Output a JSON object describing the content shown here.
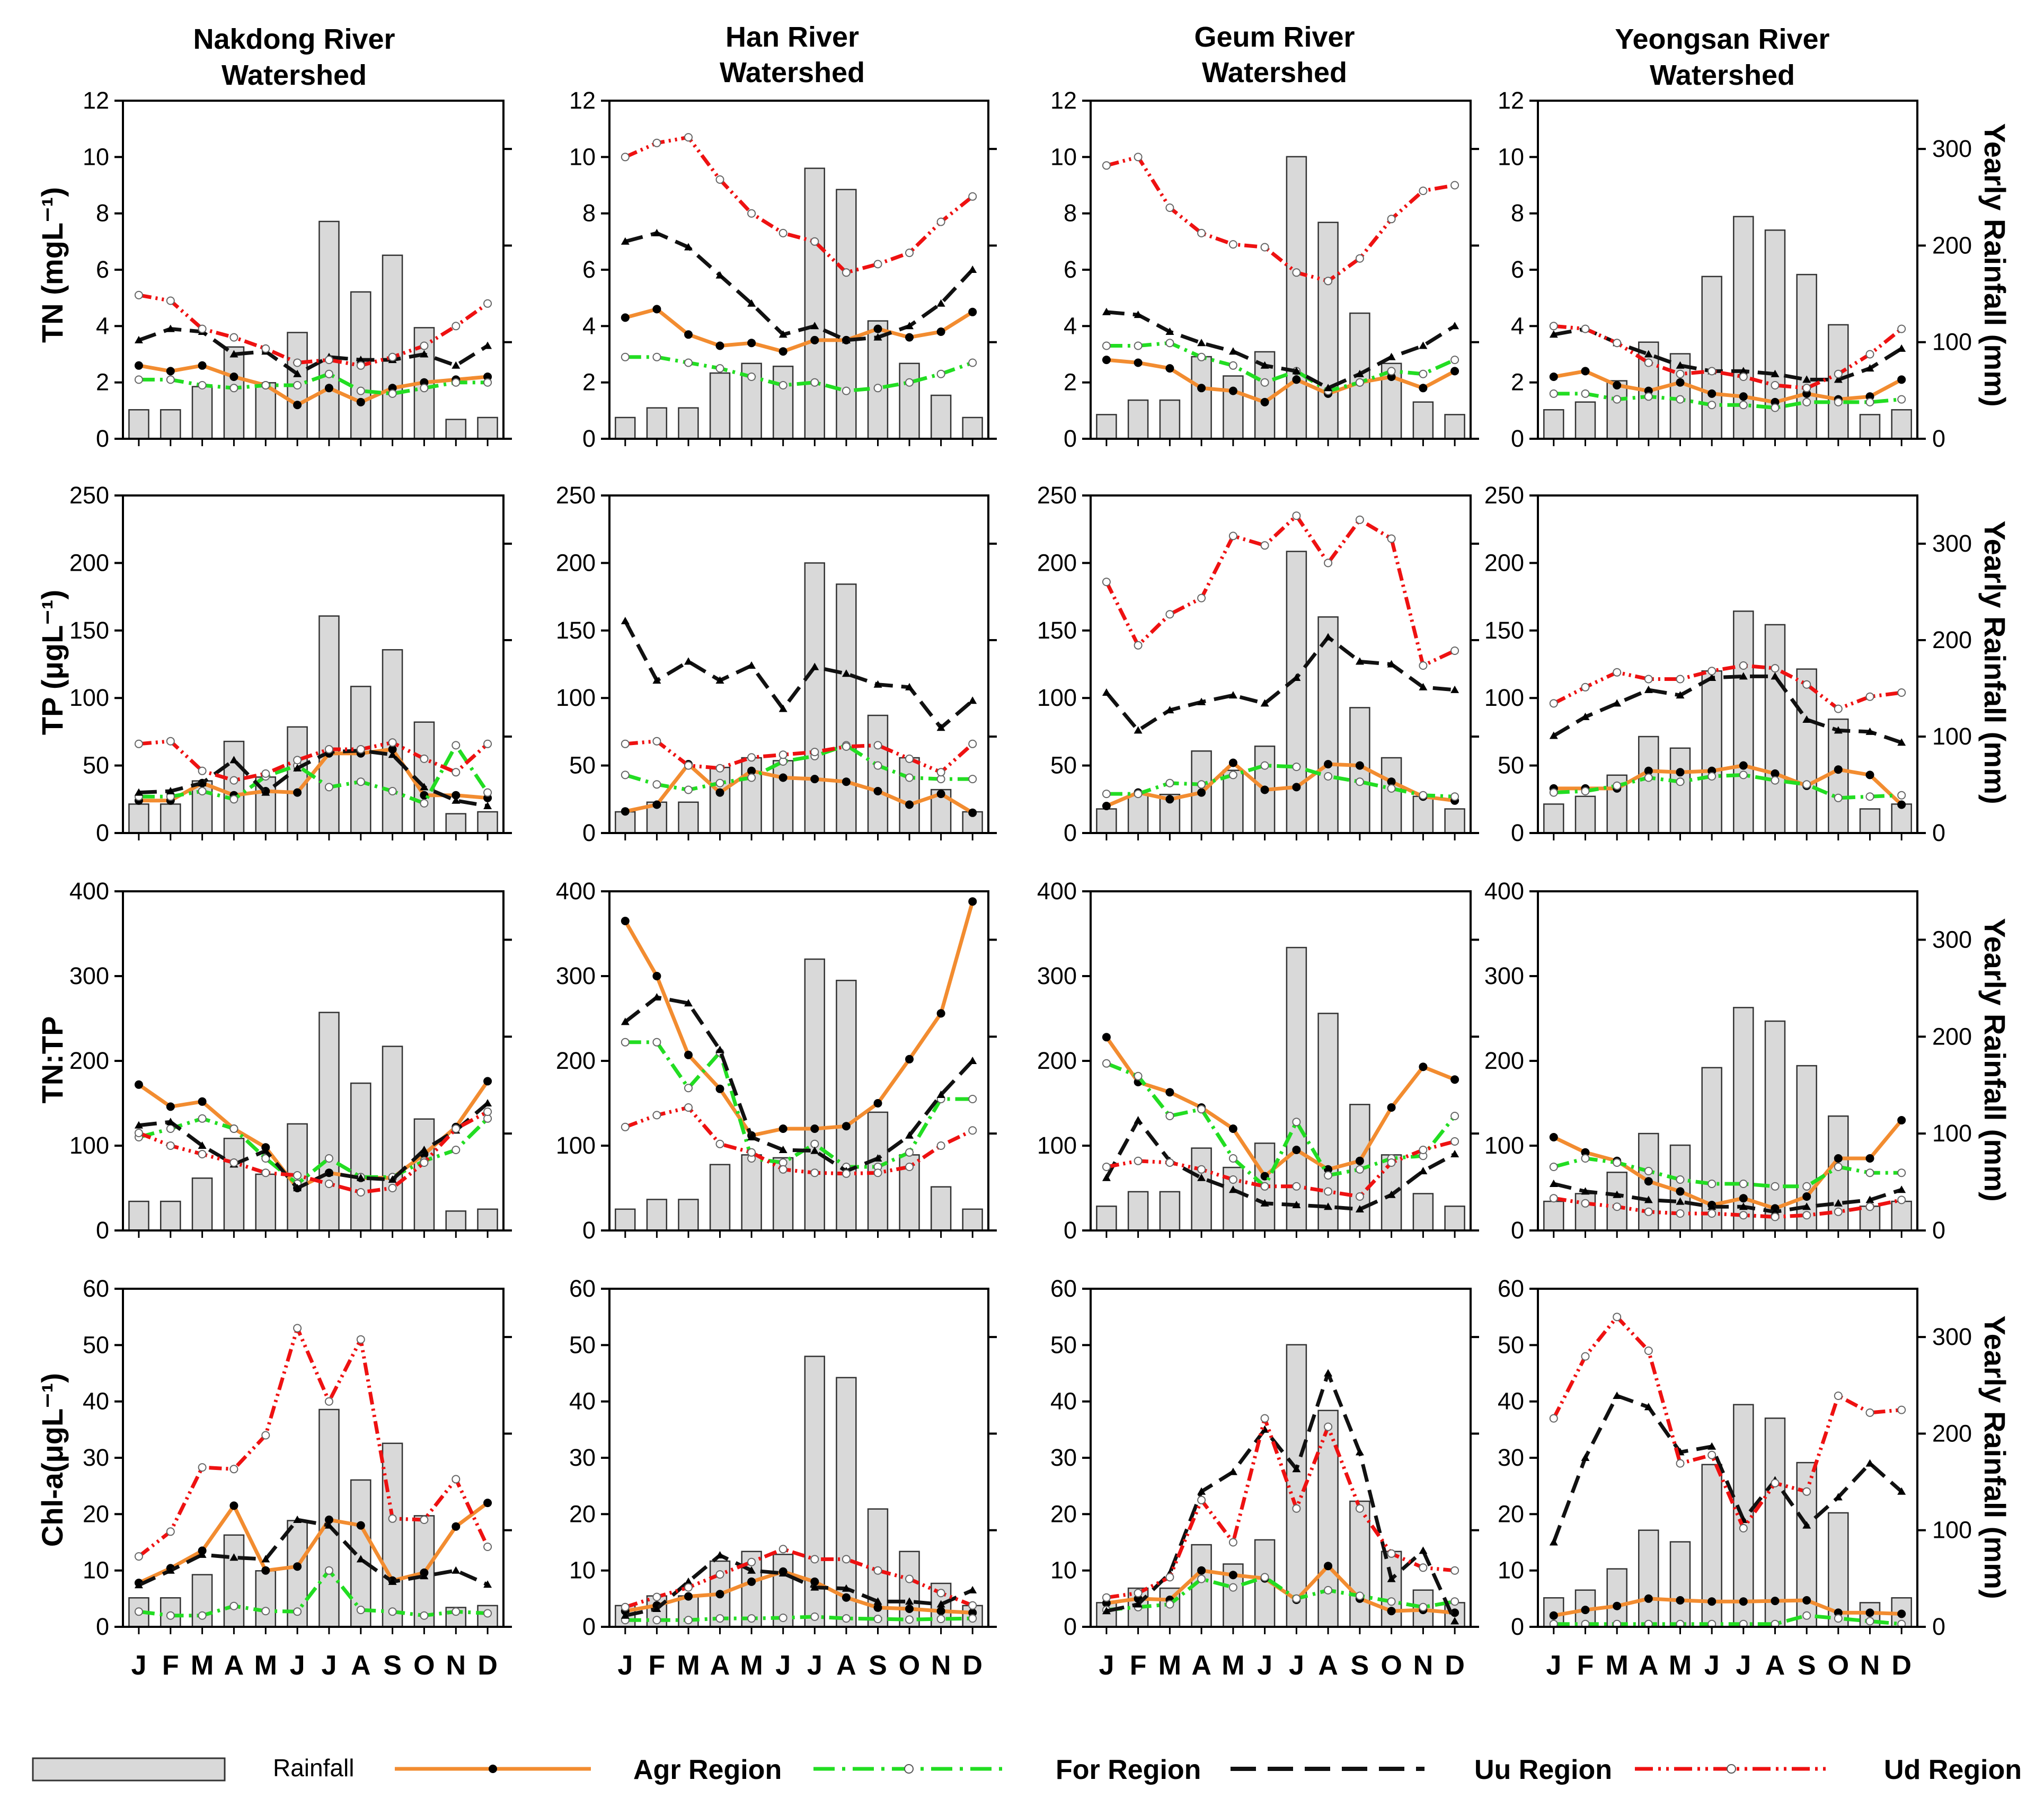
{
  "legend": {
    "rainfall": "Rainfall",
    "agr": "Agr Region",
    "for": "For Region",
    "uu": "Uu Region",
    "ud": "Ud Region"
  },
  "months": [
    "J",
    "F",
    "M",
    "A",
    "M",
    "J",
    "J",
    "A",
    "S",
    "O",
    "N",
    "D"
  ],
  "right_axis": {
    "label": "Yearly Rainfall (mm)",
    "ylim": [
      0,
      350
    ],
    "ticks": [
      0,
      100,
      200,
      300
    ]
  },
  "colors": {
    "agr": "#f28c30",
    "for": "#22dd22",
    "uu": "#111111",
    "ud": "#ee1111",
    "bar_fill": "#d9d9d9",
    "bar_stroke": "#333333"
  },
  "chart_data": {
    "type": "bar+line",
    "columns": [
      "Nakdong River Watershed",
      "Han River Watershed",
      "Geum River Watershed",
      "Yeongsan River Watershed"
    ],
    "column_titles": [
      [
        "Nakdong River",
        "Watershed"
      ],
      [
        "Han River",
        "Watershed"
      ],
      [
        "Geum River",
        "Watershed"
      ],
      [
        "Yeongsan River",
        "Watershed"
      ]
    ],
    "rows": [
      {
        "key": "TN",
        "ylabel": "TN (mgL⁻¹)",
        "ylim": [
          0,
          12
        ],
        "ticks": [
          0,
          2,
          4,
          6,
          8,
          10,
          12
        ]
      },
      {
        "key": "TP",
        "ylabel": "TP (μgL⁻¹)",
        "ylim": [
          0,
          250
        ],
        "ticks": [
          0,
          50,
          100,
          150,
          200,
          250
        ]
      },
      {
        "key": "TNTP",
        "ylabel": "TN:TP",
        "ylim": [
          0,
          400
        ],
        "ticks": [
          0,
          100,
          200,
          300,
          400
        ]
      },
      {
        "key": "CHLA",
        "ylabel": "Chl-a(μgL⁻¹)",
        "ylim": [
          0,
          60
        ],
        "ticks": [
          0,
          10,
          20,
          30,
          40,
          50,
          60
        ]
      }
    ],
    "rainfall": [
      [
        30,
        30,
        54,
        95,
        58,
        110,
        225,
        152,
        190,
        115,
        20,
        22
      ],
      [
        22,
        32,
        32,
        68,
        78,
        75,
        280,
        258,
        122,
        78,
        45,
        22
      ],
      [
        25,
        40,
        40,
        85,
        65,
        90,
        292,
        224,
        130,
        78,
        38,
        25
      ],
      [
        30,
        38,
        60,
        100,
        88,
        168,
        230,
        216,
        170,
        118,
        25,
        30
      ]
    ],
    "series": {
      "TN": [
        {
          "agr": [
            2.6,
            2.4,
            2.6,
            2.2,
            1.9,
            1.2,
            1.8,
            1.3,
            1.8,
            2.0,
            2.1,
            2.2
          ],
          "for": [
            2.1,
            2.1,
            1.9,
            1.8,
            1.9,
            1.9,
            2.3,
            1.7,
            1.6,
            1.8,
            2.0,
            2.0
          ],
          "uu": [
            3.5,
            3.9,
            3.8,
            3.0,
            3.1,
            2.3,
            2.9,
            2.8,
            2.8,
            3.0,
            2.6,
            3.3
          ],
          "ud": [
            5.1,
            4.9,
            3.9,
            3.6,
            3.2,
            2.7,
            2.8,
            2.6,
            2.9,
            3.3,
            4.0,
            4.8
          ]
        },
        {
          "agr": [
            4.3,
            4.6,
            3.7,
            3.3,
            3.4,
            3.1,
            3.5,
            3.5,
            3.9,
            3.6,
            3.8,
            4.5
          ],
          "for": [
            2.9,
            2.9,
            2.7,
            2.5,
            2.2,
            1.9,
            2.0,
            1.7,
            1.8,
            2.0,
            2.3,
            2.7
          ],
          "uu": [
            7.0,
            7.3,
            6.8,
            5.8,
            4.8,
            3.7,
            4.0,
            3.5,
            3.6,
            4.0,
            4.8,
            6.0
          ],
          "ud": [
            10.0,
            10.5,
            10.7,
            9.2,
            8.0,
            7.3,
            7.0,
            5.9,
            6.2,
            6.6,
            7.7,
            8.6
          ]
        },
        {
          "agr": [
            2.8,
            2.7,
            2.5,
            1.8,
            1.7,
            1.3,
            2.1,
            1.6,
            2.0,
            2.2,
            1.8,
            2.4
          ],
          "for": [
            3.3,
            3.3,
            3.4,
            2.9,
            2.6,
            2.0,
            2.4,
            1.7,
            2.0,
            2.4,
            2.3,
            2.8
          ],
          "uu": [
            4.5,
            4.4,
            3.8,
            3.4,
            3.1,
            2.6,
            2.4,
            1.8,
            2.3,
            2.9,
            3.3,
            4.0
          ],
          "ud": [
            9.7,
            10.0,
            8.2,
            7.3,
            6.9,
            6.8,
            5.9,
            5.6,
            6.4,
            7.8,
            8.8,
            9.0
          ]
        },
        {
          "agr": [
            2.2,
            2.4,
            1.9,
            1.7,
            2.0,
            1.6,
            1.5,
            1.3,
            1.6,
            1.4,
            1.5,
            2.1
          ],
          "for": [
            1.6,
            1.6,
            1.4,
            1.5,
            1.4,
            1.2,
            1.2,
            1.1,
            1.3,
            1.3,
            1.3,
            1.4
          ],
          "uu": [
            3.7,
            3.9,
            3.4,
            3.0,
            2.6,
            2.4,
            2.4,
            2.3,
            2.1,
            2.1,
            2.5,
            3.2
          ],
          "ud": [
            4.0,
            3.9,
            3.4,
            2.7,
            2.3,
            2.4,
            2.2,
            1.9,
            1.8,
            2.3,
            3.0,
            3.9
          ]
        }
      ],
      "TP": [
        {
          "agr": [
            24,
            24,
            37,
            28,
            31,
            30,
            59,
            59,
            62,
            28,
            28,
            26
          ],
          "for": [
            27,
            27,
            31,
            25,
            42,
            50,
            34,
            38,
            31,
            22,
            65,
            30
          ],
          "uu": [
            30,
            31,
            37,
            54,
            30,
            48,
            60,
            61,
            58,
            34,
            24,
            20
          ],
          "ud": [
            66,
            68,
            46,
            39,
            44,
            54,
            62,
            62,
            67,
            55,
            45,
            66
          ]
        },
        {
          "agr": [
            16,
            21,
            51,
            30,
            46,
            41,
            40,
            38,
            31,
            21,
            29,
            15
          ],
          "for": [
            43,
            36,
            32,
            37,
            41,
            53,
            57,
            65,
            50,
            41,
            40,
            40
          ],
          "uu": [
            157,
            113,
            127,
            113,
            124,
            92,
            123,
            118,
            110,
            108,
            78,
            98
          ],
          "ud": [
            66,
            68,
            50,
            48,
            56,
            58,
            60,
            64,
            65,
            55,
            45,
            66
          ]
        },
        {
          "agr": [
            20,
            30,
            25,
            30,
            52,
            32,
            34,
            51,
            50,
            38,
            27,
            24
          ],
          "for": [
            29,
            29,
            37,
            36,
            43,
            50,
            49,
            42,
            38,
            33,
            28,
            27
          ],
          "uu": [
            104,
            76,
            91,
            97,
            102,
            96,
            115,
            145,
            127,
            125,
            108,
            106
          ],
          "ud": [
            186,
            139,
            162,
            174,
            220,
            213,
            235,
            200,
            232,
            218,
            124,
            135
          ]
        },
        {
          "agr": [
            33,
            33,
            33,
            46,
            45,
            46,
            50,
            44,
            35,
            47,
            43,
            21
          ],
          "for": [
            30,
            31,
            35,
            41,
            38,
            42,
            43,
            39,
            36,
            26,
            27,
            28
          ],
          "uu": [
            72,
            86,
            96,
            106,
            102,
            115,
            116,
            116,
            84,
            76,
            75,
            67
          ],
          "ud": [
            96,
            108,
            119,
            114,
            114,
            120,
            124,
            122,
            110,
            92,
            101,
            104
          ]
        }
      ],
      "TNTP": [
        {
          "agr": [
            172,
            146,
            152,
            120,
            98,
            50,
            68,
            62,
            62,
            90,
            122,
            176
          ],
          "for": [
            110,
            120,
            132,
            120,
            85,
            55,
            85,
            63,
            63,
            82,
            95,
            132
          ],
          "uu": [
            124,
            128,
            100,
            78,
            94,
            50,
            68,
            62,
            60,
            95,
            118,
            150
          ],
          "ud": [
            115,
            100,
            90,
            80,
            68,
            65,
            55,
            45,
            50,
            80,
            120,
            140
          ]
        },
        {
          "agr": [
            365,
            300,
            207,
            167,
            112,
            120,
            120,
            123,
            150,
            202,
            256,
            388
          ],
          "for": [
            222,
            222,
            168,
            210,
            85,
            80,
            102,
            75,
            75,
            92,
            155,
            155
          ],
          "uu": [
            246,
            275,
            268,
            213,
            110,
            95,
            94,
            70,
            85,
            112,
            160,
            200
          ],
          "ud": [
            122,
            136,
            145,
            102,
            92,
            72,
            68,
            67,
            68,
            75,
            100,
            118
          ]
        },
        {
          "agr": [
            228,
            175,
            163,
            145,
            120,
            64,
            95,
            72,
            82,
            145,
            193,
            178
          ],
          "for": [
            197,
            182,
            135,
            143,
            85,
            52,
            128,
            65,
            72,
            85,
            88,
            135
          ],
          "uu": [
            62,
            130,
            82,
            62,
            48,
            32,
            30,
            28,
            25,
            42,
            70,
            90
          ],
          "ud": [
            75,
            82,
            80,
            72,
            60,
            52,
            52,
            46,
            40,
            80,
            95,
            105
          ]
        },
        {
          "agr": [
            110,
            92,
            82,
            58,
            46,
            30,
            38,
            26,
            40,
            85,
            85,
            130
          ],
          "for": [
            75,
            85,
            80,
            70,
            60,
            55,
            55,
            52,
            52,
            75,
            68,
            68
          ],
          "uu": [
            55,
            46,
            42,
            36,
            34,
            28,
            28,
            22,
            28,
            32,
            36,
            48
          ],
          "ud": [
            38,
            32,
            28,
            22,
            20,
            20,
            18,
            16,
            18,
            22,
            28,
            36
          ]
        }
      ],
      "CHLA": [
        {
          "agr": [
            7.8,
            10.4,
            13.5,
            21.5,
            10.0,
            10.7,
            19.0,
            18.0,
            8.2,
            9.6,
            17.8,
            22.0
          ],
          "for": [
            2.7,
            2.0,
            2.0,
            3.7,
            2.8,
            2.7,
            10.0,
            3.0,
            2.7,
            2.0,
            2.7,
            2.4
          ],
          "uu": [
            7.4,
            10.0,
            12.8,
            12.3,
            12.0,
            19.0,
            18.0,
            12.0,
            8.0,
            9.0,
            10.0,
            7.5
          ],
          "ud": [
            12.5,
            16.9,
            28.3,
            28.0,
            34.0,
            53.0,
            40.0,
            51.0,
            19.2,
            19.0,
            26.2,
            14.2
          ]
        },
        {
          "agr": [
            2.8,
            3.8,
            5.4,
            5.8,
            8.0,
            9.8,
            8.0,
            5.2,
            3.4,
            3.2,
            2.8,
            2.5
          ],
          "for": [
            1.2,
            1.2,
            1.2,
            1.5,
            1.5,
            1.6,
            1.8,
            1.5,
            1.4,
            1.3,
            1.4,
            1.5
          ],
          "uu": [
            2.0,
            3.2,
            8.0,
            12.7,
            10.0,
            9.5,
            7.0,
            6.8,
            4.5,
            4.5,
            4.0,
            6.5
          ],
          "ud": [
            3.5,
            5.3,
            7.0,
            9.3,
            11.5,
            13.8,
            12.0,
            12.0,
            10.0,
            8.5,
            6.0,
            3.8
          ]
        },
        {
          "agr": [
            4.2,
            5.0,
            4.8,
            10.0,
            9.2,
            8.6,
            4.8,
            10.8,
            5.0,
            2.8,
            3.0,
            2.5
          ],
          "for": [
            3.0,
            3.5,
            4.0,
            8.5,
            7.0,
            8.8,
            5.0,
            6.5,
            5.5,
            4.5,
            3.5,
            4.5
          ],
          "uu": [
            2.8,
            4.0,
            9.5,
            24.0,
            27.5,
            35.0,
            28.0,
            45.0,
            31.0,
            8.5,
            13.5,
            1.0
          ],
          "ud": [
            5.2,
            6.0,
            8.8,
            22.5,
            15.0,
            37.0,
            21.0,
            35.5,
            21.0,
            13.0,
            10.5,
            10.0
          ]
        },
        {
          "agr": [
            2.0,
            3.0,
            3.7,
            5.0,
            4.7,
            4.5,
            4.5,
            4.6,
            4.7,
            2.5,
            2.5,
            2.3
          ],
          "for": [
            0.5,
            0.5,
            0.5,
            0.5,
            0.5,
            0.5,
            0.5,
            0.5,
            2.0,
            1.5,
            1.0,
            0.5
          ],
          "uu": [
            15.0,
            30.0,
            41.0,
            39.0,
            31.0,
            32.0,
            19.0,
            26.0,
            18.0,
            23.0,
            29.0,
            24.0
          ],
          "ud": [
            37.0,
            48.0,
            55.0,
            49.0,
            29.0,
            30.5,
            17.5,
            25.5,
            24.0,
            41.0,
            38.0,
            38.5
          ]
        }
      ]
    }
  }
}
